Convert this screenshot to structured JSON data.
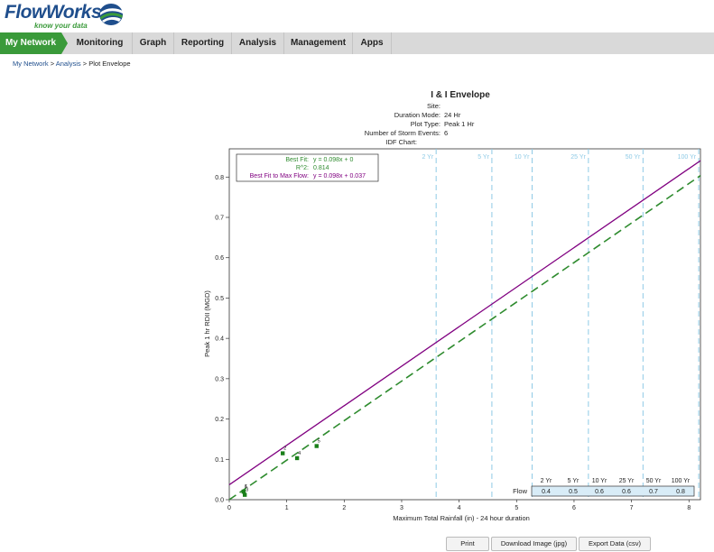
{
  "brand": {
    "name": "FlowWorks",
    "tagline": "know your data"
  },
  "nav": [
    {
      "label": "My Network",
      "active": true
    },
    {
      "label": "Monitoring"
    },
    {
      "label": "Graph"
    },
    {
      "label": "Reporting"
    },
    {
      "label": "Analysis"
    },
    {
      "label": "Management"
    },
    {
      "label": "Apps"
    }
  ],
  "breadcrumb": {
    "root": "My Network",
    "section": "Analysis",
    "current": "Plot Envelope",
    "separator": ">"
  },
  "plot_header": {
    "title": "I & I Envelope",
    "site_label": "Site:",
    "site_value": "",
    "duration_label": "Duration Mode:",
    "duration_value": "24 Hr",
    "plot_type_label": "Plot Type:",
    "plot_type_value": "Peak 1 Hr",
    "storm_label": "Number of Storm Events:",
    "storm_value": "6",
    "idf_label": "IDF Chart:",
    "idf_value": ""
  },
  "fit_box": {
    "best_fit_label": "Best Fit:",
    "best_fit_value": "y = 0.098x + 0",
    "r2_label": "R^2:",
    "r2_value": "0.814",
    "max_fit_label": "Best Fit to Max Flow:",
    "max_fit_value": "y = 0.098x + 0.037"
  },
  "idf_table": {
    "row_label": "Flow",
    "headers": [
      "2 Yr",
      "5 Yr",
      "10 Yr",
      "25 Yr",
      "50 Yr",
      "100 Yr"
    ],
    "values": [
      "0.4",
      "0.5",
      "0.6",
      "0.6",
      "0.7",
      "0.8"
    ]
  },
  "buttons": {
    "print": "Print",
    "download": "Download Image (jpg)",
    "export": "Export Data (csv)"
  },
  "colors": {
    "accent": "#3a9a3a",
    "brand": "#1f4e8c",
    "best_fit": "#2e8b2e",
    "max_fit": "#800080",
    "idf": "#8ecae6"
  },
  "chart_data": {
    "type": "scatter",
    "xlabel": "Maximum Total Rainfall (in) - 24 hour duration",
    "ylabel": "Peak 1 hr RDII (MGD)",
    "xlim": [
      0,
      8.2
    ],
    "ylim": [
      0,
      0.87
    ],
    "x_ticks": [
      0,
      1,
      2,
      3,
      4,
      5,
      6,
      7,
      8
    ],
    "y_ticks": [
      0.0,
      0.1,
      0.2,
      0.3,
      0.4,
      0.5,
      0.6,
      0.7,
      0.8
    ],
    "x_tick_labels": [
      "0",
      "1",
      "2",
      "3",
      "4",
      "5",
      "6",
      "7",
      "8"
    ],
    "y_tick_labels": [
      "0.0",
      "0.1",
      "0.2",
      "0.3",
      "0.4",
      "0.5",
      "0.6",
      "0.7",
      "0.8"
    ],
    "points": [
      {
        "label": "1",
        "x": 0.25,
        "y": 0.02
      },
      {
        "label": "2",
        "x": 0.93,
        "y": 0.115
      },
      {
        "label": "3",
        "x": 0.27,
        "y": 0.012
      },
      {
        "label": "4",
        "x": 1.18,
        "y": 0.103
      },
      {
        "label": "5",
        "x": 1.52,
        "y": 0.133
      },
      {
        "label": "6",
        "x": 0.25,
        "y": 0.02
      }
    ],
    "lines": [
      {
        "name": "Best Fit",
        "slope": 0.098,
        "intercept": 0,
        "style": "dashed"
      },
      {
        "name": "Best Fit to Max Flow",
        "slope": 0.098,
        "intercept": 0.037,
        "style": "solid"
      }
    ],
    "idf_lines": [
      {
        "label": "2 Yr",
        "x": 3.6
      },
      {
        "label": "5 Yr",
        "x": 4.57
      },
      {
        "label": "10 Yr",
        "x": 5.27
      },
      {
        "label": "25 Yr",
        "x": 6.25
      },
      {
        "label": "50 Yr",
        "x": 7.2
      },
      {
        "label": "100 Yr",
        "x": 8.17
      }
    ]
  }
}
